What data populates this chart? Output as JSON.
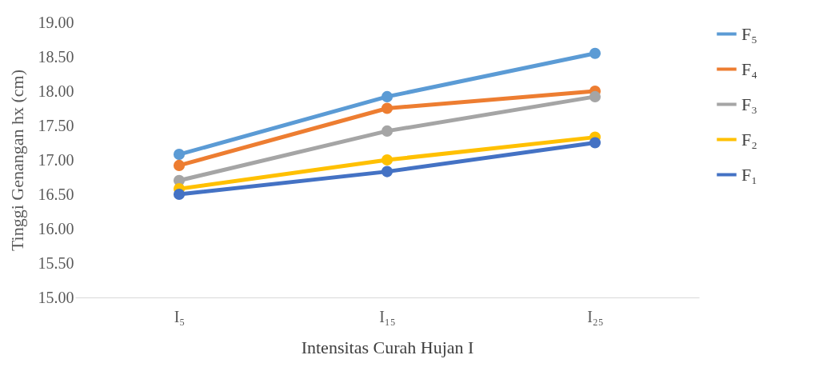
{
  "chart_data": {
    "type": "line",
    "xlabel": "Intensitas Curah Hujan I",
    "ylabel": "Tinggi Genangan hx (cm)",
    "categories": [
      "I₅",
      "I₁₅",
      "I₂₅"
    ],
    "series": [
      {
        "name": "F₅",
        "color": "#5b9bd5",
        "values": [
          17.08,
          17.92,
          18.55
        ]
      },
      {
        "name": "F₄",
        "color": "#ed7d31",
        "values": [
          16.92,
          17.75,
          18.0
        ]
      },
      {
        "name": "F₃",
        "color": "#a5a5a5",
        "values": [
          16.7,
          17.42,
          17.92
        ]
      },
      {
        "name": "F₂",
        "color": "#ffc000",
        "values": [
          16.58,
          17.0,
          17.33
        ]
      },
      {
        "name": "F₁",
        "color": "#4472c4",
        "values": [
          16.5,
          16.83,
          17.25
        ]
      }
    ],
    "ylim": [
      15,
      19
    ],
    "yticks": [
      {
        "value": 15,
        "label": "15.00"
      },
      {
        "value": 15.5,
        "label": "15.50"
      },
      {
        "value": 16,
        "label": "16.00"
      },
      {
        "value": 16.5,
        "label": "16.50"
      },
      {
        "value": 17,
        "label": "17.00"
      },
      {
        "value": 17.5,
        "label": "17.50"
      },
      {
        "value": 18,
        "label": "18.00"
      },
      {
        "value": 18.5,
        "label": "18.50"
      },
      {
        "value": 19,
        "label": "19.00"
      }
    ],
    "grid": false,
    "legend": "right",
    "marker": "circle",
    "line_style": "solid"
  }
}
